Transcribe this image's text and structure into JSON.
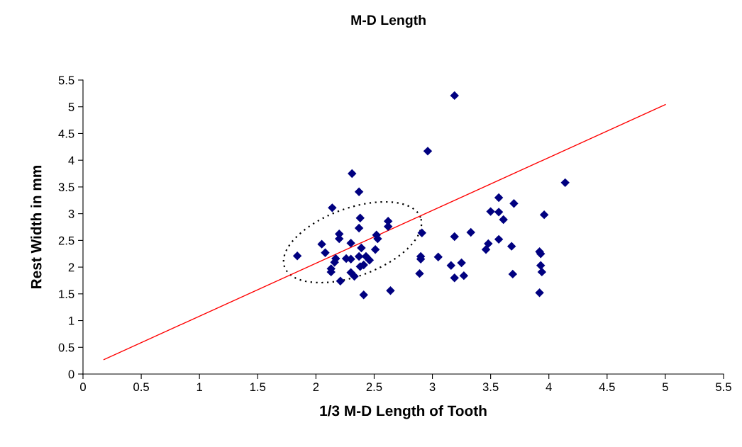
{
  "chart_data": {
    "type": "scatter",
    "title": "M-D Length",
    "xlabel": "1/3 M-D Length of Tooth",
    "ylabel": "Rest Width in mm",
    "xlim": [
      0,
      5.5
    ],
    "xticks": [
      0,
      0.5,
      1,
      1.5,
      2,
      2.5,
      3,
      3.5,
      4,
      4.5,
      5,
      5.5
    ],
    "ylim": [
      0,
      5.5
    ],
    "yticks": [
      0,
      0.5,
      1,
      1.5,
      2,
      2.5,
      3,
      3.5,
      4,
      4.5,
      5,
      5.5
    ],
    "grid": false,
    "legend": false,
    "marker": "diamond",
    "series": [
      {
        "color": "#000080",
        "x": [
          1.84,
          2.05,
          2.08,
          2.13,
          2.13,
          2.14,
          2.16,
          2.17,
          2.2,
          2.2,
          2.21,
          2.26,
          2.3,
          2.3,
          2.31,
          2.3,
          2.33,
          2.37,
          2.37,
          2.38,
          2.37,
          2.39,
          2.38,
          2.41,
          2.41,
          2.43,
          2.46,
          2.51,
          2.52,
          2.53,
          2.62,
          2.62,
          2.64,
          2.9,
          2.9,
          2.89,
          2.91,
          2.96,
          3.05,
          3.19,
          3.19,
          3.19,
          3.16,
          3.25,
          3.27,
          3.33,
          3.46,
          3.48,
          3.5,
          3.57,
          3.57,
          3.57,
          3.61,
          3.68,
          3.7,
          3.69,
          3.92,
          3.93,
          3.93,
          3.94,
          3.92,
          3.96,
          4.14
        ],
        "values": [
          2.21,
          2.43,
          2.27,
          1.91,
          1.97,
          3.11,
          2.09,
          2.16,
          2.62,
          2.53,
          1.74,
          2.16,
          2.45,
          2.15,
          3.75,
          1.9,
          1.83,
          3.41,
          2.73,
          2.92,
          2.2,
          2.36,
          2.01,
          2.04,
          1.48,
          2.2,
          2.13,
          2.33,
          2.6,
          2.53,
          2.86,
          2.76,
          1.56,
          2.2,
          2.15,
          1.88,
          2.64,
          4.17,
          2.19,
          5.21,
          2.57,
          1.8,
          2.03,
          2.08,
          1.84,
          2.65,
          2.33,
          2.44,
          3.04,
          2.52,
          3.03,
          3.3,
          2.89,
          2.39,
          3.19,
          1.87,
          2.29,
          2.25,
          2.03,
          1.91,
          1.52,
          2.98,
          3.58
        ]
      },
      {
        "type": "line",
        "color": "#ff0000",
        "x": [
          0.18,
          5.0
        ],
        "values": [
          0.27,
          5.04
        ],
        "marker": "none"
      }
    ]
  }
}
